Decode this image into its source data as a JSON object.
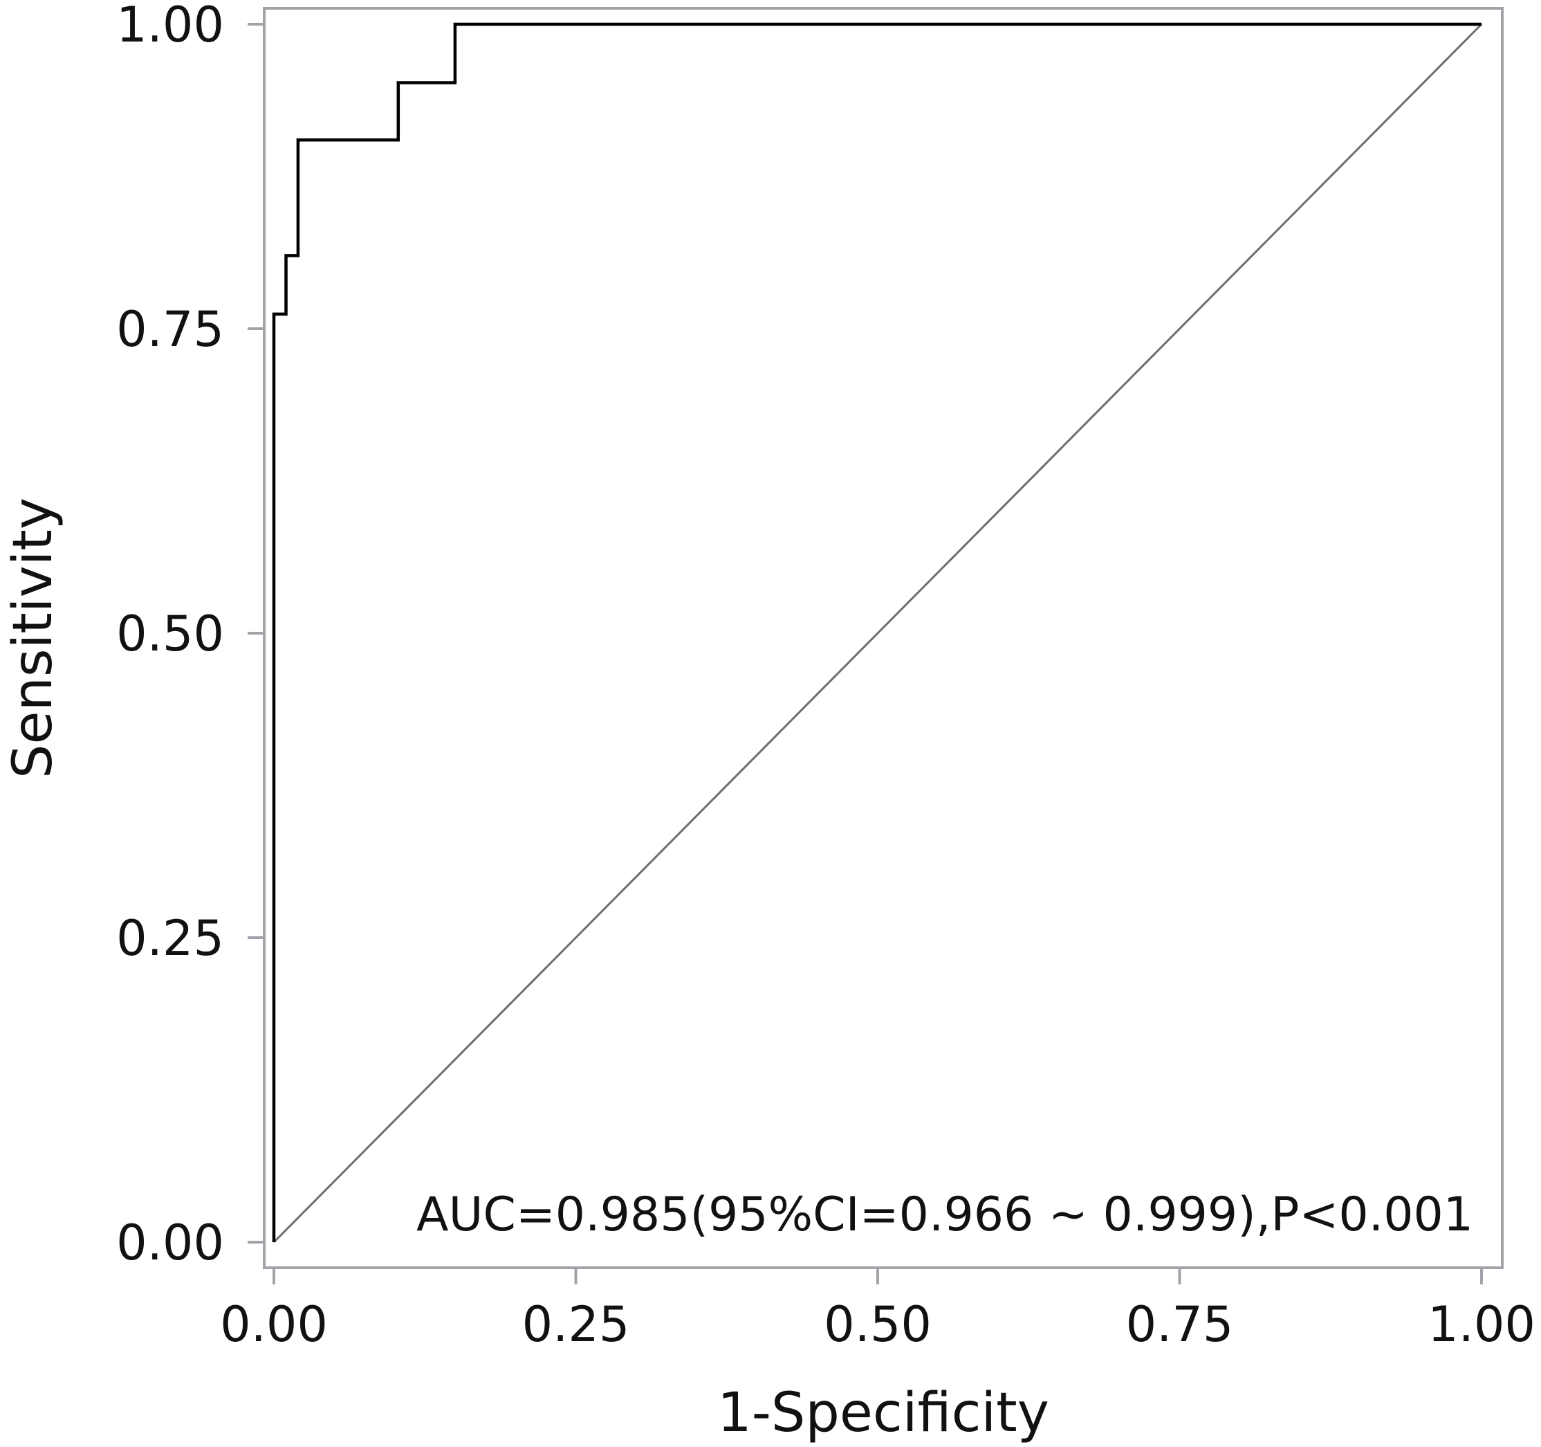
{
  "chart_data": {
    "type": "line",
    "title": "",
    "xlabel": "1-Specificity",
    "ylabel": "Sensitivity",
    "xlim": [
      0,
      1
    ],
    "ylim": [
      0,
      1
    ],
    "x_ticks": [
      "0.00",
      "0.25",
      "0.50",
      "0.75",
      "1.00"
    ],
    "y_ticks": [
      "0.00",
      "0.25",
      "0.50",
      "0.75",
      "1.00"
    ],
    "grid": false,
    "legend": "none",
    "series": [
      {
        "x": [
          0.0,
          0.0,
          0.01,
          0.01,
          0.02,
          0.02,
          0.103,
          0.103,
          0.15,
          0.15,
          1.0
        ],
        "y": [
          0.0,
          0.762,
          0.762,
          0.81,
          0.81,
          0.905,
          0.905,
          0.952,
          0.952,
          1.0,
          1.0
        ],
        "color": "#000000"
      },
      {
        "x": [
          0.0,
          1.0
        ],
        "y": [
          0.0,
          1.0
        ],
        "color": "#6e6e6e"
      }
    ],
    "annotations": [
      {
        "text": "AUC=0.985(95%CI=0.966 ~ 0.999),P<0.001",
        "x": 0.985,
        "y": 0.025
      }
    ]
  }
}
